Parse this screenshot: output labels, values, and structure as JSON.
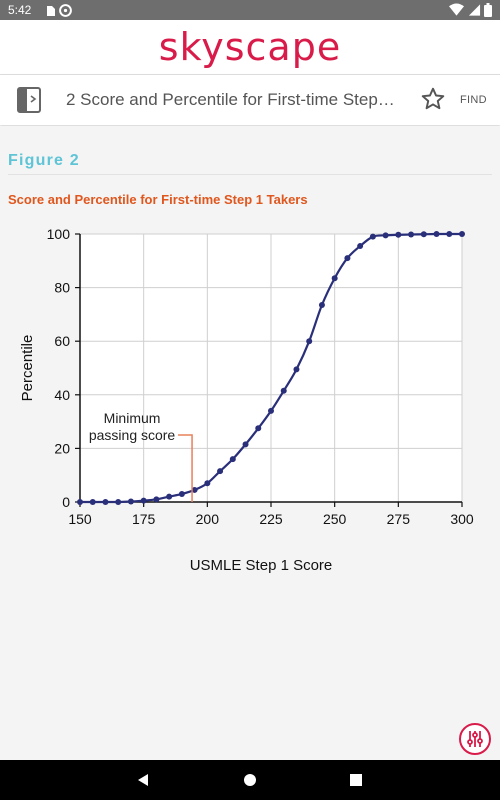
{
  "status_bar": {
    "time": "5:42",
    "left_icons": [
      "sd-card-icon",
      "sync-icon"
    ],
    "right_icons": [
      "wifi-icon",
      "signal-icon",
      "battery-icon"
    ]
  },
  "brand": {
    "logo_text": "skyscape",
    "color": "#d91b4a"
  },
  "toolbar": {
    "title": "2 Score and Percentile for First-time Step…",
    "find_label": "FIND"
  },
  "figure": {
    "heading": "Figure 2",
    "caption": "Score and Percentile for First-time Step 1 Takers",
    "heading_color": "#5ec4d6",
    "caption_color": "#e0571e"
  },
  "chart_data": {
    "type": "line",
    "title": "",
    "xlabel": "USMLE Step 1 Score",
    "ylabel": "Percentile",
    "xlim": [
      150,
      300
    ],
    "ylim": [
      0,
      100
    ],
    "xticks": [
      150,
      175,
      200,
      225,
      250,
      275,
      300
    ],
    "yticks": [
      0,
      20,
      40,
      60,
      80,
      100
    ],
    "grid": true,
    "x": [
      150,
      155,
      160,
      165,
      170,
      175,
      180,
      185,
      190,
      195,
      200,
      205,
      210,
      215,
      220,
      225,
      230,
      235,
      240,
      245,
      250,
      255,
      260,
      265,
      270,
      275,
      280,
      285,
      290,
      295,
      300
    ],
    "y": [
      0,
      0,
      0,
      0,
      0.2,
      0.5,
      1,
      2,
      3,
      4.5,
      7,
      11.5,
      16,
      21.5,
      27.5,
      34,
      41.5,
      49.5,
      60,
      73.5,
      83.5,
      91,
      95.5,
      99,
      99.5,
      99.7,
      99.8,
      99.9,
      100,
      100,
      100
    ],
    "line_color": "#2a2f7a",
    "annotation": {
      "text_line1": "Minimum",
      "text_line2": "passing score",
      "x": 194,
      "color": "#e8805a"
    }
  },
  "nav": {
    "buttons": [
      "back-button",
      "home-button",
      "recents-button"
    ]
  }
}
